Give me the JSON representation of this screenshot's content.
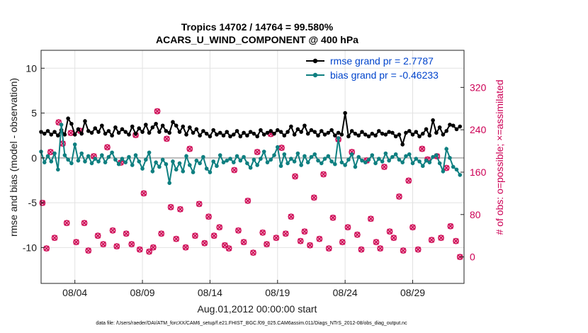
{
  "chart_data": {
    "type": "line",
    "title_line1": "Tropics 14702 / 14764 = 99.580%",
    "title_line2": "ACARS_U_WIND_COMPONENT @ 400 hPa",
    "xlabel": "Aug.01,2012 00:00:00 start",
    "ylabel_left": "rmse and bias (model - observation)",
    "ylabel_right": "# of obs: o=possible; ×=assimilated",
    "footer": "data file: /Users/raeder/DAI/ATM_forcXX/CAM6_setup/f.e21.FHIST_BGC.f09_025.CAM6assim.011/Diags_NTrS_2012-08/obs_diag_output.nc",
    "xlim": [
      1.0,
      32.3
    ],
    "ylim_left": [
      -14,
      12
    ],
    "ylim_right": [
      -50,
      390
    ],
    "x_ticks": [
      3.5,
      8.5,
      13.5,
      18.5,
      23.5,
      28.5
    ],
    "x_tick_labels": [
      "08/04",
      "08/09",
      "08/14",
      "08/19",
      "08/24",
      "08/29"
    ],
    "y_left_ticks": [
      -10,
      -5,
      0,
      5,
      10
    ],
    "y_left_tick_labels": [
      "-10",
      "-5",
      "0",
      "5",
      "10"
    ],
    "y_right_ticks": [
      0,
      80,
      160,
      240,
      320
    ],
    "y_right_tick_labels": [
      "0",
      "80",
      "160",
      "240",
      "320"
    ],
    "grid": true,
    "legend_position": "top-right",
    "colors": {
      "rmse": "#000000",
      "bias": "#0e7f80",
      "obs": "#d0105a",
      "zero_line": "#bbbbbb",
      "grid": "#e2e2e2",
      "legend_text": "#0044cc"
    },
    "series": [
      {
        "name": "rmse grand pr = 2.7787",
        "axis": "left",
        "x": [
          1.0,
          1.25,
          1.5,
          1.75,
          2.0,
          2.25,
          2.5,
          2.75,
          3.0,
          3.25,
          3.5,
          3.75,
          4.0,
          4.25,
          4.5,
          4.75,
          5.0,
          5.25,
          5.5,
          5.75,
          6.0,
          6.25,
          6.5,
          6.75,
          7.0,
          7.25,
          7.5,
          7.75,
          8.0,
          8.25,
          8.5,
          8.75,
          9.0,
          9.25,
          9.5,
          9.75,
          10.0,
          10.25,
          10.5,
          10.75,
          11.0,
          11.25,
          11.5,
          11.75,
          12.0,
          12.25,
          12.5,
          12.75,
          13.0,
          13.25,
          13.5,
          13.75,
          14.0,
          14.25,
          14.5,
          14.75,
          15.0,
          15.25,
          15.5,
          15.75,
          16.0,
          16.25,
          16.5,
          16.75,
          17.0,
          17.25,
          17.5,
          17.75,
          18.0,
          18.25,
          18.5,
          18.75,
          19.0,
          19.25,
          19.5,
          19.75,
          20.0,
          20.25,
          20.5,
          20.75,
          21.0,
          21.25,
          21.5,
          21.75,
          22.0,
          22.25,
          22.5,
          22.75,
          23.0,
          23.25,
          23.5,
          23.75,
          24.0,
          24.25,
          24.5,
          24.75,
          25.0,
          25.25,
          25.5,
          25.75,
          26.0,
          26.25,
          26.5,
          26.75,
          27.0,
          27.25,
          27.5,
          27.75,
          28.0,
          28.25,
          28.5,
          28.75,
          29.0,
          29.25,
          29.5,
          29.75,
          30.0,
          30.25,
          30.5,
          30.75,
          31.0,
          31.25,
          31.5,
          31.75,
          32.0
        ],
        "values": [
          2.9,
          2.7,
          3.0,
          2.6,
          2.9,
          2.5,
          3.1,
          2.6,
          4.4,
          3.8,
          2.6,
          3.2,
          2.7,
          4.1,
          3.0,
          2.8,
          3.3,
          2.9,
          3.6,
          2.7,
          3.0,
          2.5,
          3.4,
          2.8,
          3.2,
          2.9,
          2.6,
          3.5,
          2.7,
          3.3,
          2.9,
          3.7,
          2.8,
          3.4,
          3.8,
          2.9,
          3.6,
          3.0,
          2.8,
          4.0,
          3.6,
          2.9,
          3.5,
          2.6,
          3.4,
          2.8,
          3.2,
          2.5,
          3.0,
          2.7,
          2.4,
          3.1,
          2.6,
          2.8,
          2.5,
          2.9,
          2.4,
          2.6,
          3.0,
          2.4,
          2.8,
          2.5,
          2.9,
          2.7,
          2.4,
          3.1,
          2.6,
          2.8,
          3.0,
          2.7,
          3.1,
          2.9,
          2.5,
          2.9,
          3.5,
          2.6,
          3.2,
          2.9,
          3.6,
          2.7,
          3.1,
          2.9,
          2.5,
          3.0,
          2.6,
          2.8,
          3.1,
          2.5,
          2.8,
          2.6,
          5.0,
          2.4,
          3.0,
          2.7,
          2.5,
          2.9,
          2.6,
          2.4,
          2.7,
          2.5,
          3.0,
          2.7,
          2.6,
          2.9,
          2.8,
          2.4,
          2.6,
          1.5,
          2.8,
          3.0,
          2.6,
          2.9,
          2.4,
          2.7,
          3.2,
          2.5,
          4.2,
          2.8,
          3.4,
          2.6,
          3.0,
          3.7,
          3.6,
          3.2,
          3.5
        ]
      },
      {
        "name": "bias grand pr = -0.46233",
        "axis": "left",
        "x": [
          1.0,
          1.25,
          1.5,
          1.75,
          2.0,
          2.25,
          2.5,
          2.75,
          3.0,
          3.25,
          3.5,
          3.75,
          4.0,
          4.25,
          4.5,
          4.75,
          5.0,
          5.25,
          5.5,
          5.75,
          6.0,
          6.25,
          6.5,
          6.75,
          7.0,
          7.25,
          7.5,
          7.75,
          8.0,
          8.25,
          8.5,
          8.75,
          9.0,
          9.25,
          9.5,
          9.75,
          10.0,
          10.25,
          10.5,
          10.75,
          11.0,
          11.25,
          11.5,
          11.75,
          12.0,
          12.25,
          12.5,
          12.75,
          13.0,
          13.25,
          13.5,
          13.75,
          14.0,
          14.25,
          14.5,
          14.75,
          15.0,
          15.25,
          15.5,
          15.75,
          16.0,
          16.25,
          16.5,
          16.75,
          17.0,
          17.25,
          17.5,
          17.75,
          18.0,
          18.25,
          18.5,
          18.75,
          19.0,
          19.25,
          19.5,
          19.75,
          20.0,
          20.25,
          20.5,
          20.75,
          21.0,
          21.25,
          21.5,
          21.75,
          22.0,
          22.25,
          22.5,
          22.75,
          23.0,
          23.25,
          23.5,
          23.75,
          24.0,
          24.25,
          24.5,
          24.75,
          25.0,
          25.25,
          25.5,
          25.75,
          26.0,
          26.25,
          26.5,
          26.75,
          27.0,
          27.25,
          27.5,
          27.75,
          28.0,
          28.25,
          28.5,
          28.75,
          29.0,
          29.25,
          29.5,
          29.75,
          30.0,
          30.25,
          30.5,
          30.75,
          31.0,
          31.25,
          31.5,
          31.75,
          32.0
        ],
        "values": [
          0.7,
          -0.5,
          0.2,
          -0.4,
          0.5,
          -1.3,
          3.7,
          0.3,
          -0.2,
          -0.6,
          1.5,
          -0.3,
          0.5,
          -0.4,
          0.2,
          -0.6,
          -0.1,
          -0.4,
          0.3,
          -0.5,
          0.1,
          0.6,
          -0.2,
          -0.7,
          -0.1,
          -0.5,
          0.1,
          -0.8,
          0.3,
          -0.4,
          -1.2,
          -0.2,
          0.6,
          -1.5,
          -0.5,
          -1.0,
          -0.2,
          -0.7,
          -2.8,
          -0.4,
          -1.3,
          -0.6,
          -1.5,
          0.2,
          -0.8,
          -1.6,
          -0.3,
          -0.6,
          0.1,
          -1.2,
          -1.6,
          -0.4,
          -0.9,
          0.3,
          -0.5,
          -0.3,
          -0.1,
          -0.5,
          0.2,
          -0.3,
          0.1,
          -0.6,
          -1.1,
          -0.2,
          -0.8,
          -0.1,
          0.7,
          -0.5,
          -0.2,
          0.3,
          1.2,
          -0.9,
          0.4,
          -0.6,
          -0.1,
          -0.4,
          0.5,
          -0.8,
          0.2,
          -0.5,
          0.1,
          0.4,
          -0.3,
          -0.6,
          -0.1,
          0.2,
          -0.4,
          -0.7,
          2.2,
          -0.5,
          -0.8,
          -0.2,
          0.4,
          -1.0,
          0.1,
          -0.3,
          -0.5,
          -0.2,
          0.3,
          -0.6,
          -0.1,
          -0.4,
          0.5,
          -0.3,
          0.1,
          0.4,
          -0.2,
          -0.5,
          0.2,
          0.4,
          -0.6,
          -0.1,
          -0.4,
          -0.9,
          -0.3,
          -0.5,
          0.1,
          0.3,
          -0.6,
          -1.5,
          1.0,
          0.0,
          -1.0,
          -1.3,
          -1.9
        ]
      }
    ],
    "obs_possible": {
      "name": "possible",
      "axis": "right",
      "x": [
        1.1,
        1.4,
        1.7,
        2.0,
        2.3,
        2.6,
        2.9,
        3.2,
        3.6,
        3.9,
        4.2,
        4.5,
        4.9,
        5.2,
        5.6,
        5.9,
        6.3,
        6.6,
        6.9,
        7.3,
        7.7,
        8.0,
        8.3,
        8.6,
        9.0,
        9.3,
        9.6,
        9.9,
        10.3,
        10.6,
        11.0,
        11.3,
        11.7,
        12.0,
        12.4,
        12.7,
        13.1,
        13.4,
        13.8,
        14.2,
        14.6,
        14.9,
        15.3,
        15.6,
        16.0,
        16.3,
        16.7,
        17.0,
        17.4,
        17.7,
        18.0,
        18.4,
        18.8,
        19.1,
        19.5,
        19.8,
        20.2,
        20.5,
        20.9,
        21.2,
        21.6,
        21.9,
        22.3,
        22.6,
        23.0,
        23.3,
        23.7,
        24.0,
        24.4,
        24.7,
        25.1,
        25.4,
        25.8,
        26.1,
        26.4,
        26.8,
        27.1,
        27.5,
        27.8,
        28.2,
        28.5,
        28.9,
        29.2,
        29.6,
        29.9,
        30.3,
        30.6,
        31.0,
        31.3,
        31.7,
        32.0
      ],
      "values": [
        102,
        16,
        198,
        36,
        254,
        214,
        64,
        234,
        28,
        238,
        64,
        12,
        190,
        40,
        24,
        207,
        50,
        20,
        178,
        44,
        24,
        230,
        14,
        120,
        10,
        18,
        275,
        44,
        223,
        94,
        34,
        90,
        18,
        204,
        40,
        100,
        26,
        76,
        40,
        56,
        22,
        16,
        164,
        50,
        28,
        106,
        8,
        198,
        46,
        24,
        232,
        36,
        206,
        44,
        76,
        152,
        30,
        48,
        22,
        112,
        34,
        156,
        16,
        74,
        222,
        28,
        56,
        198,
        42,
        14,
        182,
        72,
        28,
        16,
        170,
        48,
        36,
        114,
        12,
        144,
        56,
        14,
        204,
        184,
        32,
        190,
        36,
        168,
        58,
        30,
        0
      ]
    },
    "obs_assimilated": {
      "name": "assimilated",
      "axis": "right",
      "x": [
        1.1,
        1.4,
        1.7,
        2.0,
        2.3,
        2.6,
        2.9,
        3.2,
        3.6,
        3.9,
        4.2,
        4.5,
        4.9,
        5.2,
        5.6,
        5.9,
        6.3,
        6.6,
        6.9,
        7.3,
        7.7,
        8.0,
        8.3,
        8.6,
        9.0,
        9.3,
        9.6,
        9.9,
        10.3,
        10.6,
        11.0,
        11.3,
        11.7,
        12.0,
        12.4,
        12.7,
        13.1,
        13.4,
        13.8,
        14.2,
        14.6,
        14.9,
        15.3,
        15.6,
        16.0,
        16.3,
        16.7,
        17.0,
        17.4,
        17.7,
        18.0,
        18.4,
        18.8,
        19.1,
        19.5,
        19.8,
        20.2,
        20.5,
        20.9,
        21.2,
        21.6,
        21.9,
        22.3,
        22.6,
        23.0,
        23.3,
        23.7,
        24.0,
        24.4,
        24.7,
        25.1,
        25.4,
        25.8,
        26.1,
        26.4,
        26.8,
        27.1,
        27.5,
        27.8,
        28.2,
        28.5,
        28.9,
        29.2,
        29.6,
        29.9,
        30.3,
        30.6,
        31.0,
        31.3,
        31.7,
        32.0
      ],
      "values": [
        102,
        16,
        198,
        36,
        254,
        214,
        64,
        234,
        28,
        238,
        64,
        12,
        190,
        40,
        24,
        207,
        50,
        20,
        178,
        44,
        24,
        230,
        14,
        120,
        10,
        18,
        275,
        44,
        223,
        94,
        34,
        90,
        18,
        204,
        40,
        100,
        26,
        76,
        40,
        56,
        22,
        16,
        164,
        50,
        28,
        106,
        8,
        198,
        46,
        24,
        232,
        36,
        206,
        44,
        76,
        152,
        30,
        48,
        22,
        112,
        34,
        156,
        16,
        74,
        222,
        28,
        56,
        198,
        42,
        14,
        182,
        72,
        28,
        16,
        170,
        48,
        36,
        114,
        12,
        144,
        56,
        14,
        204,
        184,
        32,
        190,
        36,
        168,
        58,
        30,
        0
      ]
    }
  }
}
